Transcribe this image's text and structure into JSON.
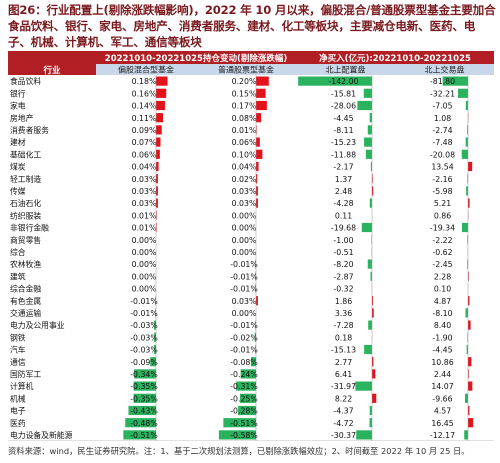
{
  "title": "图26：行业配置上(剔除涨跌幅影响)，2022 年 10 月以来，偏股混合/普通股票型基金主要加合食品饮料、银行、家电、房地产、消费者服务、建材、化工等板块，主要减仓电新、医药、电子、机械、计算机、军工、通信等板块",
  "footnote": "资料来源：wind，民生证券研究院。注：1、基于二次规划法测算，已剔除涨跌幅效应；2、时间截至 2022 年 10 月 25 日。",
  "colors": {
    "header_bg": "#b11e23",
    "subheader_bg": "#c9d7ea",
    "pos": "#e3131b",
    "neg": "#2bb25e",
    "title": "#7a1a1f"
  },
  "chart_data": {
    "type": "table",
    "header": {
      "row_label": "行业",
      "group_left": "20221010-20221025持仓变动(剔除涨跌幅)",
      "group_right": "净买入(亿元):20221010-20221025",
      "columns": [
        "偏股混合型基金",
        "普通股票型基金",
        "北上配置盘",
        "北上交易盘"
      ]
    },
    "rows": [
      {
        "name": "食品饮料",
        "values": [
          0.18,
          0.2,
          -142.0,
          -81.8
        ],
        "labels": [
          "0.18%",
          "0.20%",
          "-142.00",
          "-81.80"
        ]
      },
      {
        "name": "银行",
        "values": [
          0.16,
          0.15,
          -15.81,
          -32.21
        ],
        "labels": [
          "0.16%",
          "0.15%",
          "-15.81",
          "-32.21"
        ]
      },
      {
        "name": "家电",
        "values": [
          0.14,
          0.17,
          -28.06,
          -7.05
        ],
        "labels": [
          "0.14%",
          "0.17%",
          "-28.06",
          "-7.05"
        ]
      },
      {
        "name": "房地产",
        "values": [
          0.11,
          0.08,
          -4.45,
          1.08
        ],
        "labels": [
          "0.11%",
          "0.08%",
          "-4.45",
          "1.08"
        ]
      },
      {
        "name": "消费者服务",
        "values": [
          0.09,
          0.01,
          -8.11,
          -2.74
        ],
        "labels": [
          "0.09%",
          "0.01%",
          "-8.11",
          "-2.74"
        ]
      },
      {
        "name": "建材",
        "values": [
          0.07,
          0.06,
          -15.23,
          -7.48
        ],
        "labels": [
          "0.07%",
          "0.06%",
          "-15.23",
          "-7.48"
        ]
      },
      {
        "name": "基础化工",
        "values": [
          0.06,
          0.1,
          -11.88,
          -20.08
        ],
        "labels": [
          "0.06%",
          "0.10%",
          "-11.88",
          "-20.08"
        ]
      },
      {
        "name": "煤炭",
        "values": [
          0.04,
          0.04,
          -2.17,
          13.54
        ],
        "labels": [
          "0.04%",
          "0.04%",
          "-2.17",
          "13.54"
        ]
      },
      {
        "name": "轻工制造",
        "values": [
          0.03,
          0.02,
          1.37,
          -2.16
        ],
        "labels": [
          "0.03%",
          "0.02%",
          "1.37",
          "-2.16"
        ]
      },
      {
        "name": "传媒",
        "values": [
          0.03,
          0.03,
          2.48,
          -5.98
        ],
        "labels": [
          "0.03%",
          "0.03%",
          "2.48",
          "-5.98"
        ]
      },
      {
        "name": "石油石化",
        "values": [
          0.03,
          0.03,
          -4.28,
          5.21
        ],
        "labels": [
          "0.03%",
          "0.03%",
          "-4.28",
          "5.21"
        ]
      },
      {
        "name": "纺织服装",
        "values": [
          0.01,
          0.0,
          0.11,
          0.86
        ],
        "labels": [
          "0.01%",
          "0.00%",
          "0.11",
          "0.86"
        ]
      },
      {
        "name": "非银行金融",
        "values": [
          0.01,
          0.0,
          -19.68,
          -19.34
        ],
        "labels": [
          "0.01%",
          "0.00%",
          "-19.68",
          "-19.34"
        ]
      },
      {
        "name": "商贸零售",
        "values": [
          0.0,
          0.0,
          -1.0,
          -2.22
        ],
        "labels": [
          "0.00%",
          "0.00%",
          "-1.00",
          "-2.22"
        ]
      },
      {
        "name": "综合",
        "values": [
          0.0,
          0.0,
          -0.51,
          -0.62
        ],
        "labels": [
          "0.00%",
          "0.00%",
          "-0.51",
          "-0.62"
        ]
      },
      {
        "name": "农林牧渔",
        "values": [
          0.0,
          -0.01,
          -8.2,
          -2.45
        ],
        "labels": [
          "0.00%",
          "-0.01%",
          "-8.20",
          "-2.45"
        ]
      },
      {
        "name": "建筑",
        "values": [
          0.0,
          -0.01,
          -2.87,
          2.28
        ],
        "labels": [
          "0.00%",
          "-0.01%",
          "-2.87",
          "2.28"
        ]
      },
      {
        "name": "综合金融",
        "values": [
          0.0,
          -0.01,
          -0.32,
          0.1
        ],
        "labels": [
          "0.00%",
          "-0.01%",
          "-0.32",
          "0.10"
        ]
      },
      {
        "name": "有色金属",
        "values": [
          -0.01,
          0.03,
          1.86,
          4.87
        ],
        "labels": [
          "-0.01%",
          "0.03%",
          "1.86",
          "4.87"
        ]
      },
      {
        "name": "交通运输",
        "values": [
          -0.01,
          0.0,
          3.36,
          -8.1
        ],
        "labels": [
          "-0.01%",
          "0.00%",
          "3.36",
          "-8.10"
        ]
      },
      {
        "name": "电力及公用事业",
        "values": [
          -0.03,
          -0.01,
          -7.28,
          8.4
        ],
        "labels": [
          "-0.03%",
          "-0.01%",
          "-7.28",
          "8.40"
        ]
      },
      {
        "name": "钢铁",
        "values": [
          -0.03,
          -0.02,
          0.18,
          -1.9
        ],
        "labels": [
          "-0.03%",
          "-0.02%",
          "0.18",
          "-1.90"
        ]
      },
      {
        "name": "汽车",
        "values": [
          -0.03,
          -0.01,
          -15.13,
          -4.45
        ],
        "labels": [
          "-0.03%",
          "-0.01%",
          "-15.13",
          "-4.45"
        ]
      },
      {
        "name": "通信",
        "values": [
          -0.09,
          -0.08,
          2.77,
          10.86
        ],
        "labels": [
          "-0.09%",
          "-0.08%",
          "2.77",
          "10.86"
        ]
      },
      {
        "name": "国防军工",
        "values": [
          -0.34,
          -0.24,
          6.41,
          2.44
        ],
        "labels": [
          "-0.34%",
          "-0.24%",
          "6.41",
          "2.44"
        ]
      },
      {
        "name": "计算机",
        "values": [
          -0.35,
          -0.31,
          -31.97,
          14.07
        ],
        "labels": [
          "-0.35%",
          "-0.31%",
          "-31.97",
          "14.07"
        ]
      },
      {
        "name": "机械",
        "values": [
          -0.35,
          -0.25,
          8.22,
          -9.66
        ],
        "labels": [
          "-0.35%",
          "-0.25%",
          "8.22",
          "-9.66"
        ]
      },
      {
        "name": "电子",
        "values": [
          -0.43,
          -0.28,
          -4.37,
          4.57
        ],
        "labels": [
          "-0.43%",
          "-0.28%",
          "-4.37",
          "4.57"
        ]
      },
      {
        "name": "医药",
        "values": [
          -0.48,
          -0.51,
          -4.72,
          16.45
        ],
        "labels": [
          "-0.48%",
          "-0.51%",
          "-4.72",
          "16.45"
        ]
      },
      {
        "name": "电力设备及新能源",
        "values": [
          -0.51,
          -0.58,
          -30.37,
          -12.17
        ],
        "labels": [
          "-0.51%",
          "-0.58%",
          "-30.37",
          "-12.17"
        ]
      }
    ]
  }
}
